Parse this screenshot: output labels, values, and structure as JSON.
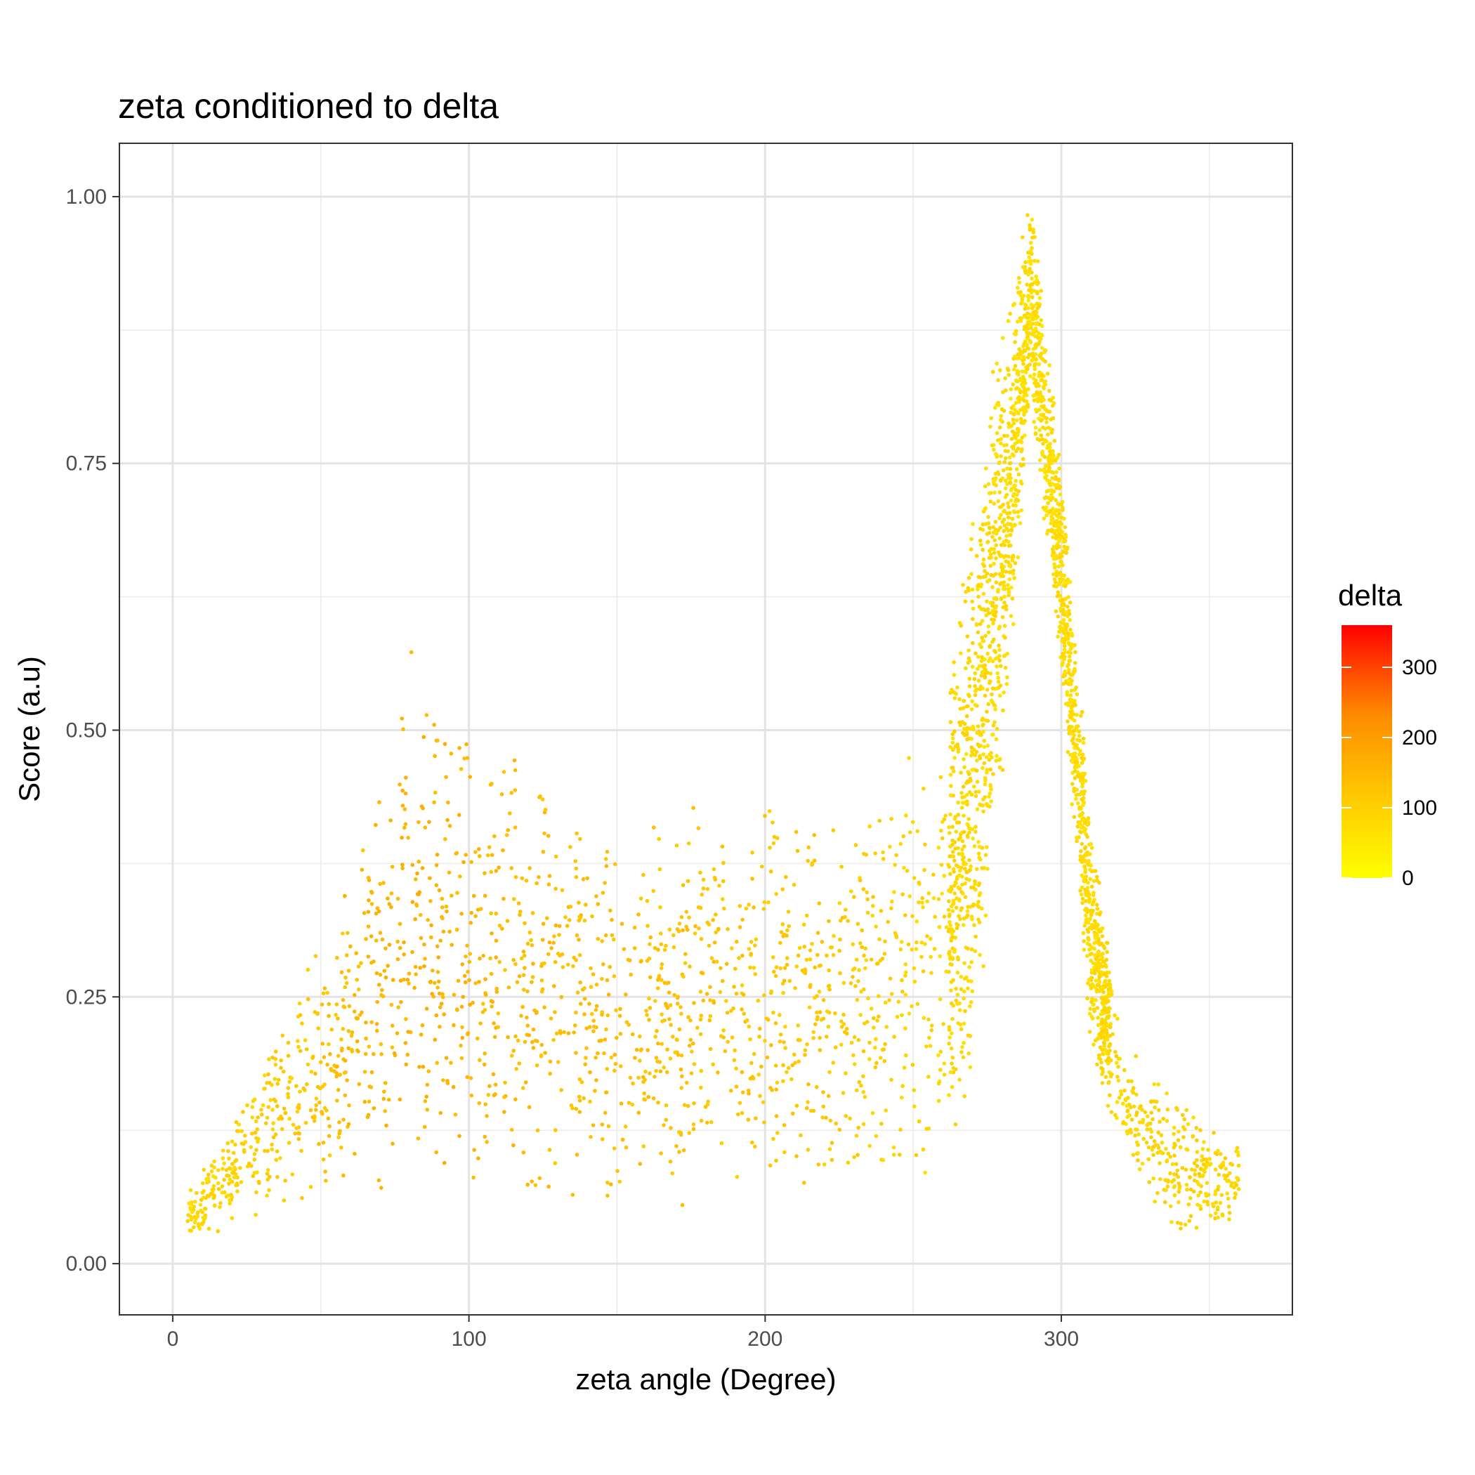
{
  "chart_data": {
    "type": "scatter",
    "title": "zeta conditioned to delta",
    "xlabel": "zeta angle (Degree)",
    "ylabel": "Score (a.u)",
    "xlim": [
      -18,
      378
    ],
    "ylim": [
      -0.048,
      1.05
    ],
    "x_ticks": [
      0,
      100,
      200,
      300
    ],
    "y_ticks": [
      0.0,
      0.25,
      0.5,
      0.75,
      1.0
    ],
    "x_tick_labels": [
      "0",
      "100",
      "200",
      "300"
    ],
    "y_tick_labels": [
      "0.00",
      "0.25",
      "0.50",
      "0.75",
      "1.00"
    ],
    "grid": true,
    "legend_position": "right",
    "color_scale": {
      "title": "delta",
      "low_color": "#ffff00",
      "high_color": "#ff0000",
      "domain": [
        0,
        360
      ],
      "ticks": [
        0,
        100,
        200,
        300
      ],
      "tick_labels": [
        "0",
        "100",
        "200",
        "300"
      ]
    },
    "series_envelope": [
      {
        "x": 5,
        "y_low": 0.02,
        "y_high": 0.07,
        "delta": 80
      },
      {
        "x": 20,
        "y_low": 0.03,
        "y_high": 0.13,
        "delta": 90
      },
      {
        "x": 40,
        "y_low": 0.04,
        "y_high": 0.27,
        "delta": 110
      },
      {
        "x": 60,
        "y_low": 0.06,
        "y_high": 0.36,
        "delta": 140
      },
      {
        "x": 80,
        "y_low": 0.07,
        "y_high": 0.6,
        "delta": 160
      },
      {
        "x": 100,
        "y_low": 0.06,
        "y_high": 0.5,
        "delta": 150
      },
      {
        "x": 120,
        "y_low": 0.05,
        "y_high": 0.48,
        "delta": 140
      },
      {
        "x": 140,
        "y_low": 0.05,
        "y_high": 0.44,
        "delta": 135
      },
      {
        "x": 160,
        "y_low": 0.05,
        "y_high": 0.42,
        "delta": 130
      },
      {
        "x": 180,
        "y_low": 0.05,
        "y_high": 0.44,
        "delta": 125
      },
      {
        "x": 200,
        "y_low": 0.06,
        "y_high": 0.45,
        "delta": 120
      },
      {
        "x": 220,
        "y_low": 0.05,
        "y_high": 0.45,
        "delta": 115
      },
      {
        "x": 240,
        "y_low": 0.06,
        "y_high": 0.46,
        "delta": 100
      },
      {
        "x": 260,
        "y_low": 0.08,
        "y_high": 0.55,
        "delta": 85
      },
      {
        "x": 270,
        "y_low": 0.15,
        "y_high": 0.72,
        "delta": 80
      },
      {
        "x": 280,
        "y_low": 0.45,
        "y_high": 0.9,
        "delta": 75
      },
      {
        "x": 290,
        "y_low": 0.8,
        "y_high": 1.0,
        "delta": 70
      },
      {
        "x": 300,
        "y_low": 0.55,
        "y_high": 0.75,
        "delta": 72
      },
      {
        "x": 310,
        "y_low": 0.2,
        "y_high": 0.42,
        "delta": 78
      },
      {
        "x": 320,
        "y_low": 0.1,
        "y_high": 0.22,
        "delta": 85
      },
      {
        "x": 340,
        "y_low": 0.02,
        "y_high": 0.16,
        "delta": 90
      },
      {
        "x": 360,
        "y_low": 0.04,
        "y_high": 0.11,
        "delta": 90
      }
    ]
  }
}
